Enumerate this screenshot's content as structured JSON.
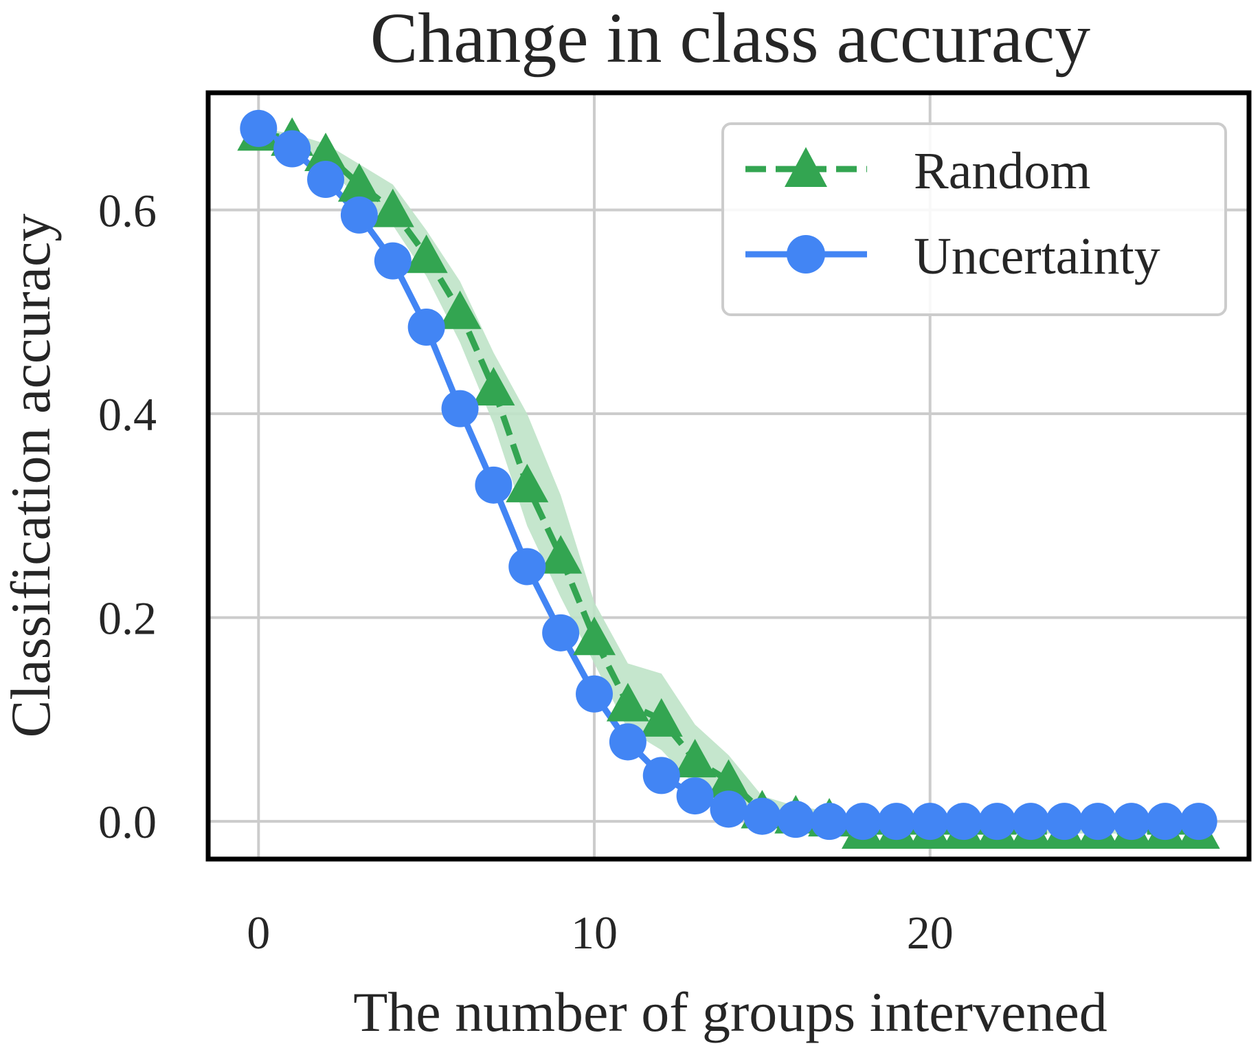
{
  "chart_data": {
    "type": "line",
    "title": "Change in class accuracy",
    "xlabel": "The number of groups intervened",
    "ylabel": "Classification accuracy",
    "xlim": [
      -1.5,
      29.5
    ],
    "ylim": [
      -0.037,
      0.715
    ],
    "xticks": [
      0,
      10,
      20
    ],
    "yticks": [
      0.0,
      0.2,
      0.4,
      0.6
    ],
    "xtick_labels": [
      "0",
      "10",
      "20"
    ],
    "ytick_labels": [
      "0.0",
      "0.2",
      "0.4",
      "0.6"
    ],
    "grid": true,
    "legend_position": "top-right",
    "x": [
      0,
      1,
      2,
      3,
      4,
      5,
      6,
      7,
      8,
      9,
      10,
      11,
      12,
      13,
      14,
      15,
      16,
      17,
      18,
      19,
      20,
      21,
      22,
      23,
      24,
      25,
      26,
      27,
      28
    ],
    "series": [
      {
        "name": "Random",
        "style": "dashed-triangle",
        "color": "#33a551",
        "band_color": "#bfe3c8",
        "values": [
          0.675,
          0.67,
          0.655,
          0.625,
          0.6,
          0.555,
          0.5,
          0.425,
          0.33,
          0.26,
          0.18,
          0.115,
          0.1,
          0.06,
          0.04,
          0.01,
          0.005,
          0.002,
          -0.01,
          -0.01,
          -0.01,
          -0.01,
          -0.01,
          -0.01,
          -0.01,
          -0.01,
          -0.01,
          -0.01,
          -0.01
        ],
        "band_lower": [
          0.675,
          0.665,
          0.645,
          0.61,
          0.585,
          0.535,
          0.47,
          0.39,
          0.29,
          0.22,
          0.155,
          0.09,
          0.07,
          0.035,
          0.015,
          0.0,
          -0.005,
          -0.008,
          -0.012,
          -0.012,
          -0.012,
          -0.012,
          -0.012,
          -0.012,
          -0.012,
          -0.012,
          -0.012,
          -0.012,
          -0.012
        ],
        "band_upper": [
          0.68,
          0.675,
          0.665,
          0.645,
          0.625,
          0.58,
          0.53,
          0.46,
          0.4,
          0.32,
          0.215,
          0.155,
          0.145,
          0.095,
          0.065,
          0.025,
          0.015,
          0.01,
          0.0,
          0.0,
          0.0,
          0.0,
          0.0,
          0.0,
          0.0,
          0.0,
          0.0,
          0.0,
          0.0
        ]
      },
      {
        "name": "Uncertainty",
        "style": "solid-circle",
        "color": "#4285f4",
        "values": [
          0.68,
          0.66,
          0.63,
          0.595,
          0.55,
          0.485,
          0.405,
          0.33,
          0.25,
          0.185,
          0.125,
          0.078,
          0.045,
          0.025,
          0.012,
          0.005,
          0.002,
          0.0,
          0.0,
          0.0,
          0.0,
          0.0,
          0.0,
          0.0,
          0.0,
          0.0,
          0.0,
          0.0,
          0.0
        ]
      }
    ]
  }
}
